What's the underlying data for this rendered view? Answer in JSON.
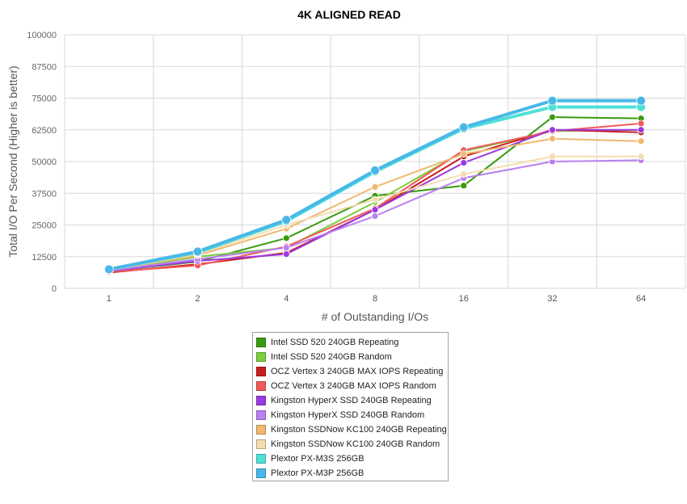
{
  "chart_data": {
    "type": "line",
    "title": "4K ALIGNED READ",
    "xlabel": "# of Outstanding I/Os",
    "ylabel": "Total I/O Per Second (Higher is better)",
    "categories": [
      "1",
      "2",
      "4",
      "8",
      "16",
      "32",
      "64"
    ],
    "y_ticks": [
      "0",
      "12500",
      "25000",
      "37500",
      "50000",
      "62500",
      "75000",
      "87500",
      "100000"
    ],
    "ylim": [
      0,
      100000
    ],
    "grid": true,
    "legend_position": "bottom",
    "series": [
      {
        "name": "Intel SSD 520 240GB Repeating",
        "color": "#3a9a10",
        "values": [
          6800,
          10500,
          19800,
          36500,
          40500,
          67500,
          67000
        ]
      },
      {
        "name": "Intel SSD 520 240GB Random",
        "color": "#7ccc40",
        "values": [
          7000,
          12500,
          16000,
          34000,
          54000,
          62000,
          62500
        ]
      },
      {
        "name": "OCZ Vertex 3 240GB MAX IOPS Repeating",
        "color": "#c81e1e",
        "values": [
          6200,
          9500,
          14000,
          31000,
          52000,
          62500,
          61500
        ]
      },
      {
        "name": "OCZ Vertex 3 240GB MAX IOPS Random",
        "color": "#f05a5a",
        "values": [
          6500,
          9000,
          16500,
          31500,
          54500,
          62000,
          65000
        ]
      },
      {
        "name": "Kingston HyperX SSD 240GB Repeating",
        "color": "#9a3ae0",
        "values": [
          6800,
          10800,
          13500,
          31000,
          49500,
          62500,
          62500
        ]
      },
      {
        "name": "Kingston HyperX SSD 240GB Random",
        "color": "#b880f0",
        "values": [
          7000,
          11500,
          16000,
          28500,
          43500,
          50000,
          50500
        ]
      },
      {
        "name": "Kingston SSDNow KC100 240GB Repeating",
        "color": "#f0b870",
        "values": [
          7200,
          13000,
          23500,
          40000,
          53000,
          59000,
          58000
        ]
      },
      {
        "name": "Kingston SSDNow KC100 240GB Random",
        "color": "#f5dcb0",
        "values": [
          7200,
          13500,
          25000,
          35000,
          45000,
          52000,
          52000
        ]
      },
      {
        "name": "Plextor PX-M3S 256GB",
        "color": "#50e0d8",
        "values": [
          7500,
          14200,
          26500,
          46000,
          63000,
          71500,
          71500
        ]
      },
      {
        "name": "Plextor PX-M3P 256GB",
        "color": "#48b8e8",
        "values": [
          7500,
          14500,
          27000,
          46500,
          63500,
          74000,
          74000
        ]
      }
    ]
  }
}
